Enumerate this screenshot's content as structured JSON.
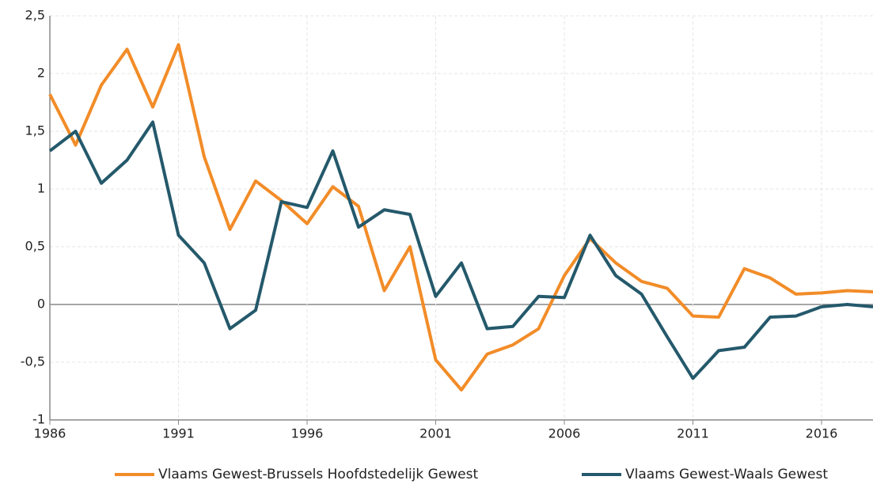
{
  "chart_data": {
    "type": "line",
    "x": [
      1986,
      1987,
      1988,
      1989,
      1990,
      1991,
      1992,
      1993,
      1994,
      1995,
      1996,
      1997,
      1998,
      1999,
      2000,
      2001,
      2002,
      2003,
      2004,
      2005,
      2006,
      2007,
      2008,
      2009,
      2010,
      2011,
      2012,
      2013,
      2014,
      2015,
      2016,
      2017,
      2018
    ],
    "series": [
      {
        "name": "Vlaams Gewest-Brussels Hoofdstedelijk Gewest",
        "color": "#f28c28",
        "values": [
          1.82,
          1.38,
          1.9,
          2.21,
          1.71,
          2.25,
          1.28,
          0.65,
          1.07,
          0.9,
          0.7,
          1.02,
          0.85,
          0.12,
          0.5,
          -0.48,
          -0.74,
          -0.43,
          -0.35,
          -0.21,
          0.25,
          0.57,
          0.36,
          0.2,
          0.14,
          -0.1,
          -0.11,
          0.31,
          0.23,
          0.09,
          0.1,
          0.12,
          0.11
        ]
      },
      {
        "name": "Vlaams Gewest-Waals Gewest",
        "color": "#24596b",
        "values": [
          1.33,
          1.5,
          1.05,
          1.25,
          1.58,
          0.6,
          0.36,
          -0.21,
          -0.05,
          0.89,
          0.84,
          1.33,
          0.67,
          0.82,
          0.78,
          0.07,
          0.36,
          -0.21,
          -0.19,
          0.07,
          0.06,
          0.6,
          0.25,
          0.09,
          -0.28,
          -0.64,
          -0.4,
          -0.37,
          -0.11,
          -0.1,
          -0.02,
          0,
          -0.02
        ]
      }
    ],
    "xlim": [
      1986,
      2018
    ],
    "xticks": [
      1986,
      1991,
      1996,
      2001,
      2006,
      2011,
      2016
    ],
    "ylim": [
      -1,
      2.5
    ],
    "yticks": [
      -1,
      {
        "value": -0.5,
        "label": "-0,5"
      },
      0,
      {
        "value": 0.5,
        "label": "0,5"
      },
      1,
      {
        "value": 1.5,
        "label": "1,5"
      },
      2,
      {
        "value": 2.5,
        "label": "2,5"
      }
    ],
    "grid": true,
    "legend": "bottom"
  }
}
